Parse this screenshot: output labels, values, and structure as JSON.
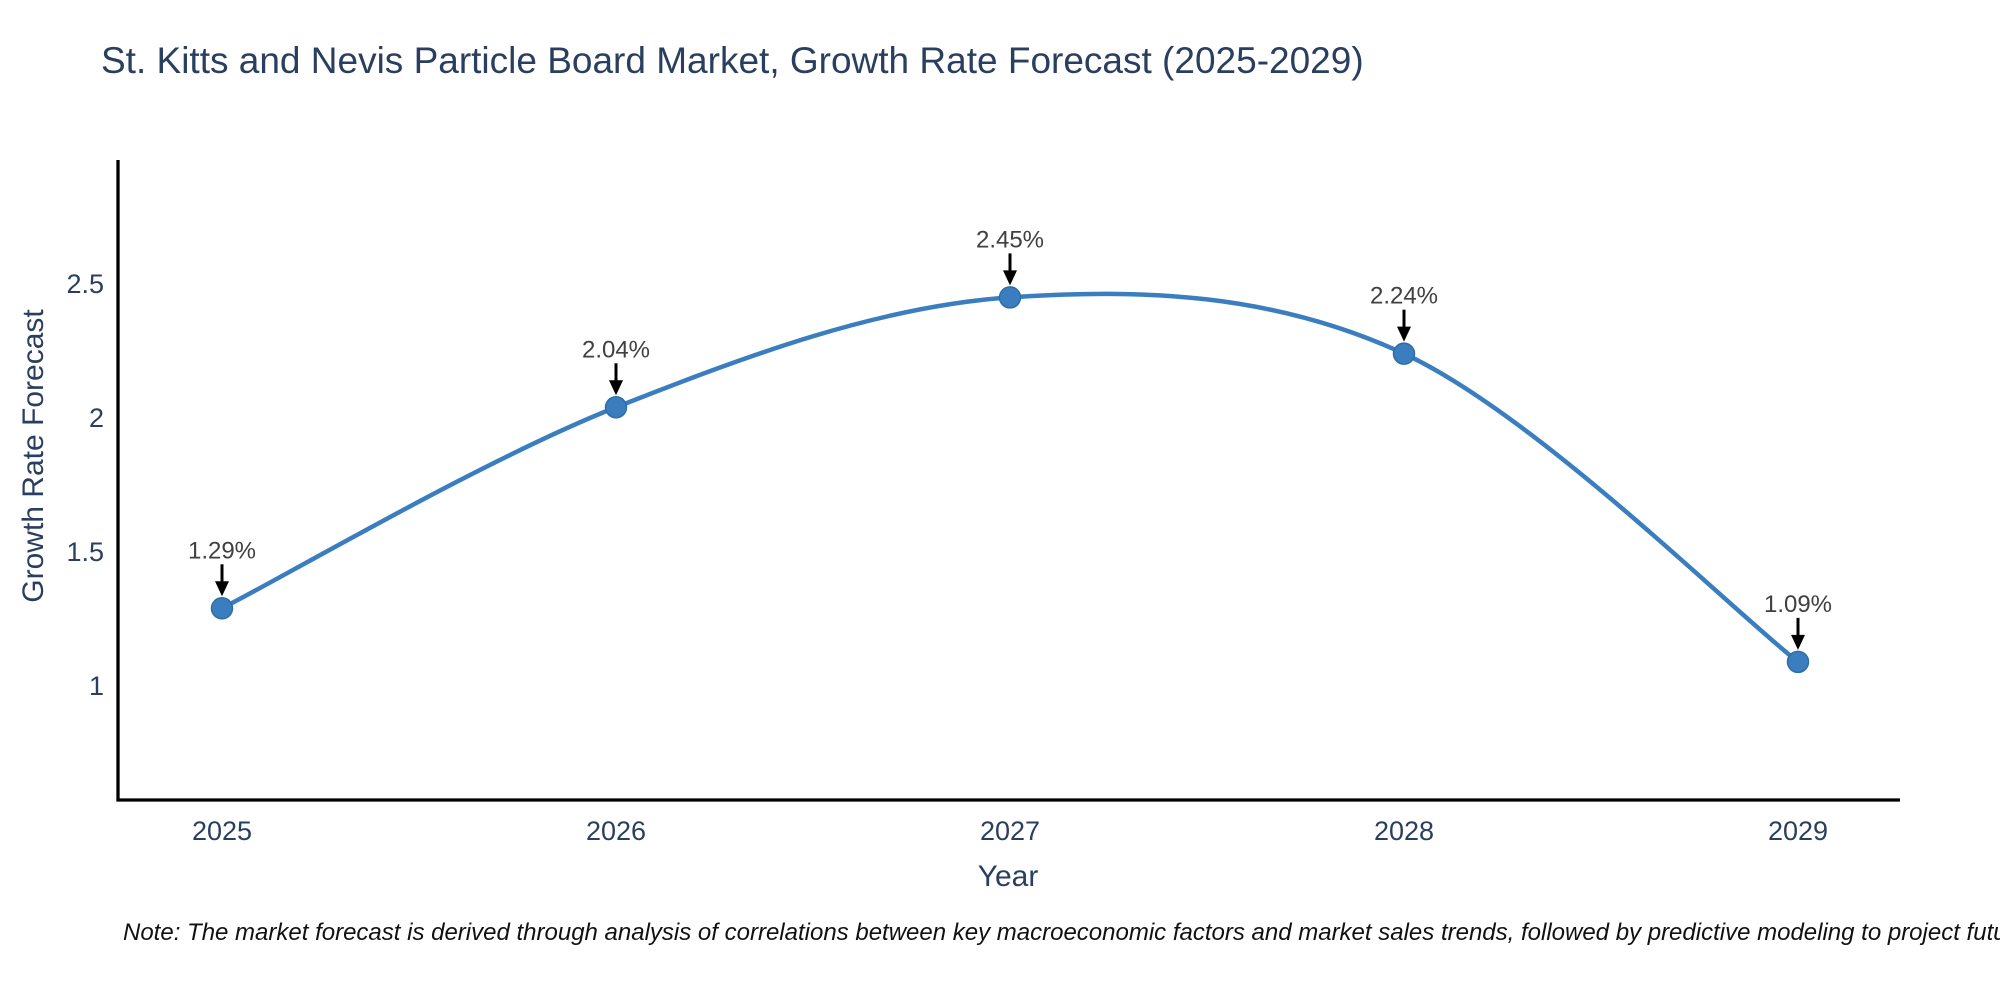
{
  "title": "St. Kitts and Nevis Particle Board Market, Growth Rate Forecast (2025-2029)",
  "note": "Note: The market forecast is derived through analysis of correlations between key macroeconomic factors and market sales trends, followed by predictive modeling to project future sales",
  "chart_data": {
    "type": "line",
    "line_shape": "spline",
    "title": "St. Kitts and Nevis Particle Board Market, Growth Rate Forecast (2025-2029)",
    "xlabel": "Year",
    "ylabel": "Growth Rate Forecast",
    "x": [
      2025,
      2026,
      2027,
      2028,
      2029
    ],
    "series": [
      {
        "name": "Growth Rate Forecast",
        "values": [
          1.29,
          2.04,
          2.45,
          2.24,
          1.09
        ]
      }
    ],
    "point_labels": [
      "1.29%",
      "2.04%",
      "2.45%",
      "2.24%",
      "1.09%"
    ],
    "x_tick_labels": [
      "2025",
      "2026",
      "2027",
      "2028",
      "2029"
    ],
    "y_ticks": [
      1,
      1.5,
      2,
      2.5
    ],
    "y_tick_labels": [
      "1",
      "1.5",
      "2",
      "2.5"
    ],
    "xlim": [
      2024.74,
      2029.26
    ],
    "ylim": [
      0.58,
      2.96
    ],
    "grid": false,
    "legend": "none",
    "colors": {
      "line": "#3a7ebf",
      "marker": "#3a7ebf",
      "marker_edge": "#2f6da8",
      "arrow": "#000000",
      "axis_line": "#000000",
      "title_text": "#2a3f5f",
      "axis_text": "#2a3f5f",
      "annotation_text": "#404040",
      "note_text": "#111111",
      "background": "#ffffff"
    }
  }
}
